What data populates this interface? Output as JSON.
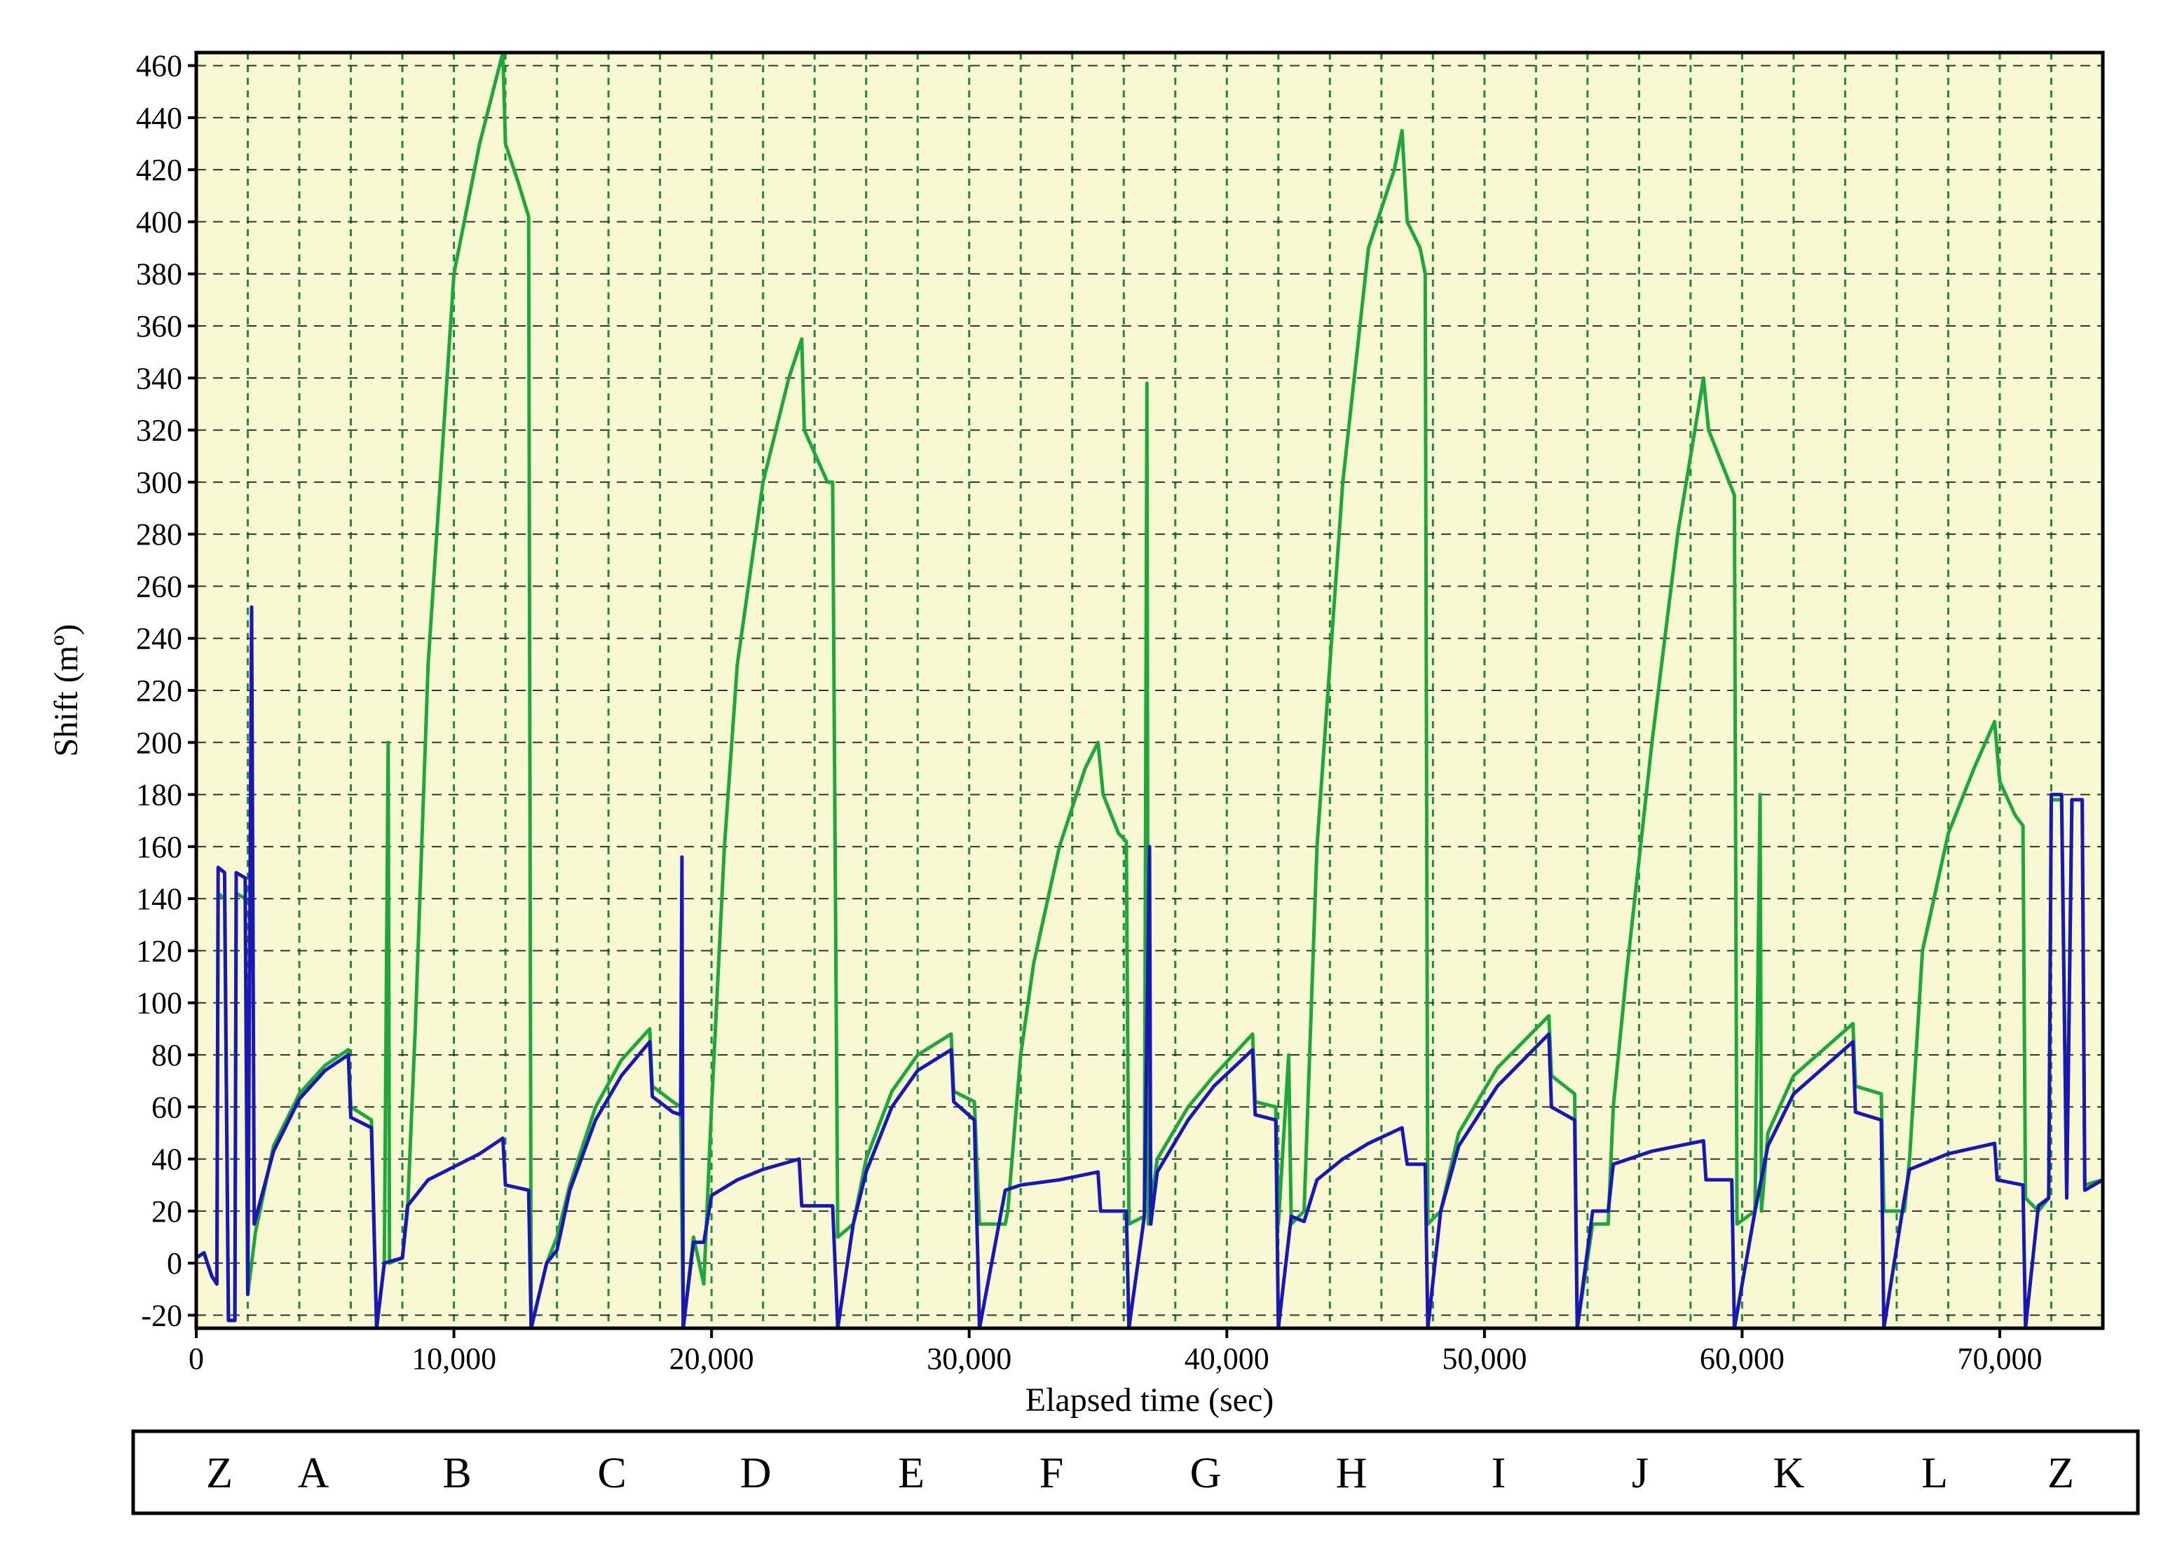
{
  "colors": {
    "plot_background": "#f8f8d2",
    "grid": "#1f8a3a",
    "series_green": "#1fa83a",
    "series_blue": "#1a17b8"
  },
  "chart_data": {
    "type": "line",
    "xlabel": "Elapsed time (sec)",
    "ylabel": "Shift (mº)",
    "xlim": [
      0,
      74000
    ],
    "ylim": [
      -25,
      465
    ],
    "x_ticks": [
      0,
      10000,
      20000,
      30000,
      40000,
      50000,
      60000,
      70000
    ],
    "x_tick_labels": [
      "0",
      "10,000",
      "20,000",
      "30,000",
      "40,000",
      "50,000",
      "60,000",
      "70,000"
    ],
    "y_ticks": [
      -20,
      0,
      20,
      40,
      60,
      80,
      100,
      120,
      140,
      160,
      180,
      200,
      220,
      240,
      260,
      280,
      300,
      320,
      340,
      360,
      380,
      400,
      420,
      440,
      460
    ],
    "y_tick_labels": [
      "-20",
      "0",
      "20",
      "40",
      "60",
      "80",
      "100",
      "120",
      "140",
      "160",
      "180",
      "200",
      "220",
      "240",
      "260",
      "280",
      "300",
      "320",
      "340",
      "360",
      "380",
      "400",
      "420",
      "440",
      "460"
    ],
    "grid": true,
    "vertical_grid_spacing": 2000,
    "legend": "none",
    "series": [
      {
        "color": "#1fa83a",
        "points": [
          [
            0,
            2
          ],
          [
            300,
            4
          ],
          [
            600,
            -5
          ],
          [
            800,
            -8
          ],
          [
            850,
            142
          ],
          [
            1100,
            140
          ],
          [
            1250,
            -22
          ],
          [
            1500,
            -22
          ],
          [
            1550,
            142
          ],
          [
            1900,
            140
          ],
          [
            2000,
            -12
          ],
          [
            2300,
            12
          ],
          [
            3000,
            45
          ],
          [
            4000,
            65
          ],
          [
            5000,
            76
          ],
          [
            5900,
            82
          ],
          [
            6000,
            60
          ],
          [
            6800,
            55
          ],
          [
            7000,
            -25
          ],
          [
            7300,
            0
          ],
          [
            7450,
            200
          ],
          [
            7500,
            0
          ],
          [
            8000,
            2
          ],
          [
            8200,
            20
          ],
          [
            8500,
            90
          ],
          [
            9000,
            230
          ],
          [
            10000,
            380
          ],
          [
            11000,
            430
          ],
          [
            11900,
            465
          ],
          [
            12000,
            430
          ],
          [
            12500,
            415
          ],
          [
            12900,
            402
          ],
          [
            13000,
            -25
          ],
          [
            13600,
            0
          ],
          [
            14000,
            10
          ],
          [
            14500,
            30
          ],
          [
            15500,
            60
          ],
          [
            16500,
            78
          ],
          [
            17600,
            90
          ],
          [
            17700,
            68
          ],
          [
            18500,
            62
          ],
          [
            18800,
            60
          ],
          [
            18900,
            -25
          ],
          [
            19300,
            10
          ],
          [
            19700,
            -8
          ],
          [
            20000,
            60
          ],
          [
            20500,
            160
          ],
          [
            21000,
            230
          ],
          [
            22000,
            300
          ],
          [
            23000,
            340
          ],
          [
            23500,
            355
          ],
          [
            23600,
            320
          ],
          [
            24500,
            300
          ],
          [
            24700,
            300
          ],
          [
            24900,
            10
          ],
          [
            25500,
            15
          ],
          [
            26000,
            40
          ],
          [
            27000,
            66
          ],
          [
            28000,
            80
          ],
          [
            29300,
            88
          ],
          [
            29400,
            66
          ],
          [
            30200,
            62
          ],
          [
            30400,
            15
          ],
          [
            31400,
            15
          ],
          [
            31500,
            20
          ],
          [
            32000,
            80
          ],
          [
            32500,
            115
          ],
          [
            33500,
            160
          ],
          [
            34500,
            190
          ],
          [
            35000,
            200
          ],
          [
            35200,
            180
          ],
          [
            35800,
            165
          ],
          [
            36100,
            162
          ],
          [
            36200,
            15
          ],
          [
            36800,
            18
          ],
          [
            36900,
            338
          ],
          [
            36950,
            15
          ],
          [
            37300,
            40
          ],
          [
            38500,
            60
          ],
          [
            39500,
            72
          ],
          [
            41000,
            88
          ],
          [
            41100,
            62
          ],
          [
            41900,
            60
          ],
          [
            42000,
            15
          ],
          [
            42400,
            80
          ],
          [
            42500,
            15
          ],
          [
            43000,
            20
          ],
          [
            43500,
            160
          ],
          [
            44500,
            300
          ],
          [
            45500,
            390
          ],
          [
            46500,
            420
          ],
          [
            46800,
            435
          ],
          [
            47000,
            400
          ],
          [
            47500,
            390
          ],
          [
            47700,
            380
          ],
          [
            47800,
            15
          ],
          [
            48300,
            20
          ],
          [
            49000,
            50
          ],
          [
            50500,
            75
          ],
          [
            52500,
            95
          ],
          [
            52600,
            72
          ],
          [
            53500,
            65
          ],
          [
            53600,
            -25
          ],
          [
            54200,
            15
          ],
          [
            54800,
            15
          ],
          [
            55000,
            60
          ],
          [
            55500,
            110
          ],
          [
            56500,
            200
          ],
          [
            57500,
            280
          ],
          [
            58500,
            340
          ],
          [
            58700,
            320
          ],
          [
            59500,
            300
          ],
          [
            59700,
            295
          ],
          [
            59800,
            15
          ],
          [
            60500,
            20
          ],
          [
            60700,
            180
          ],
          [
            60750,
            20
          ],
          [
            61000,
            50
          ],
          [
            62000,
            72
          ],
          [
            64300,
            92
          ],
          [
            64400,
            68
          ],
          [
            65400,
            65
          ],
          [
            65500,
            20
          ],
          [
            66300,
            20
          ],
          [
            66500,
            40
          ],
          [
            67000,
            120
          ],
          [
            68000,
            165
          ],
          [
            69000,
            190
          ],
          [
            69800,
            208
          ],
          [
            70000,
            185
          ],
          [
            70600,
            172
          ],
          [
            70900,
            168
          ],
          [
            71000,
            25
          ],
          [
            71500,
            20
          ],
          [
            71900,
            25
          ],
          [
            72000,
            178
          ],
          [
            72400,
            178
          ],
          [
            72600,
            30
          ],
          [
            72800,
            178
          ],
          [
            73200,
            178
          ],
          [
            73300,
            30
          ],
          [
            74000,
            32
          ]
        ]
      },
      {
        "color": "#1a17b8",
        "points": [
          [
            0,
            2
          ],
          [
            300,
            4
          ],
          [
            600,
            -5
          ],
          [
            800,
            -8
          ],
          [
            850,
            152
          ],
          [
            1100,
            150
          ],
          [
            1250,
            -22
          ],
          [
            1500,
            -22
          ],
          [
            1550,
            150
          ],
          [
            1900,
            148
          ],
          [
            2000,
            -12
          ],
          [
            2150,
            252
          ],
          [
            2250,
            15
          ],
          [
            3000,
            43
          ],
          [
            4000,
            63
          ],
          [
            5000,
            74
          ],
          [
            5900,
            80
          ],
          [
            6000,
            56
          ],
          [
            6800,
            52
          ],
          [
            7000,
            -25
          ],
          [
            7300,
            0
          ],
          [
            8000,
            2
          ],
          [
            8200,
            22
          ],
          [
            9000,
            32
          ],
          [
            10000,
            37
          ],
          [
            11000,
            42
          ],
          [
            11900,
            48
          ],
          [
            12000,
            30
          ],
          [
            12900,
            28
          ],
          [
            13000,
            -25
          ],
          [
            13600,
            0
          ],
          [
            14000,
            5
          ],
          [
            14500,
            28
          ],
          [
            15500,
            55
          ],
          [
            16500,
            72
          ],
          [
            17600,
            85
          ],
          [
            17700,
            64
          ],
          [
            18500,
            58
          ],
          [
            18800,
            57
          ],
          [
            18850,
            156
          ],
          [
            18900,
            -25
          ],
          [
            19300,
            8
          ],
          [
            19700,
            8
          ],
          [
            20000,
            26
          ],
          [
            21000,
            32
          ],
          [
            22000,
            36
          ],
          [
            23400,
            40
          ],
          [
            23500,
            22
          ],
          [
            24700,
            22
          ],
          [
            24900,
            -25
          ],
          [
            25500,
            15
          ],
          [
            26000,
            35
          ],
          [
            27000,
            60
          ],
          [
            28000,
            74
          ],
          [
            29300,
            82
          ],
          [
            29400,
            62
          ],
          [
            30200,
            55
          ],
          [
            30400,
            -25
          ],
          [
            31400,
            28
          ],
          [
            32000,
            30
          ],
          [
            33500,
            32
          ],
          [
            35000,
            35
          ],
          [
            35100,
            20
          ],
          [
            36100,
            20
          ],
          [
            36200,
            -25
          ],
          [
            36800,
            18
          ],
          [
            37000,
            160
          ],
          [
            37050,
            15
          ],
          [
            37300,
            35
          ],
          [
            38500,
            55
          ],
          [
            39500,
            68
          ],
          [
            41000,
            82
          ],
          [
            41100,
            57
          ],
          [
            41900,
            55
          ],
          [
            42000,
            -25
          ],
          [
            42500,
            18
          ],
          [
            43000,
            16
          ],
          [
            43500,
            32
          ],
          [
            44500,
            40
          ],
          [
            45500,
            46
          ],
          [
            46800,
            52
          ],
          [
            47000,
            38
          ],
          [
            47700,
            38
          ],
          [
            47800,
            -25
          ],
          [
            48300,
            20
          ],
          [
            49000,
            45
          ],
          [
            50500,
            68
          ],
          [
            52500,
            88
          ],
          [
            52600,
            60
          ],
          [
            53500,
            55
          ],
          [
            53600,
            -25
          ],
          [
            54200,
            20
          ],
          [
            54800,
            20
          ],
          [
            55000,
            38
          ],
          [
            56500,
            43
          ],
          [
            58500,
            47
          ],
          [
            58600,
            32
          ],
          [
            59600,
            32
          ],
          [
            59700,
            -25
          ],
          [
            60500,
            20
          ],
          [
            61000,
            45
          ],
          [
            62000,
            65
          ],
          [
            64300,
            85
          ],
          [
            64400,
            58
          ],
          [
            65400,
            55
          ],
          [
            65500,
            -25
          ],
          [
            66300,
            25
          ],
          [
            66500,
            36
          ],
          [
            68000,
            42
          ],
          [
            69800,
            46
          ],
          [
            69900,
            32
          ],
          [
            70900,
            30
          ],
          [
            71000,
            -25
          ],
          [
            71500,
            22
          ],
          [
            71900,
            25
          ],
          [
            72000,
            180
          ],
          [
            72400,
            180
          ],
          [
            72600,
            25
          ],
          [
            72800,
            178
          ],
          [
            73200,
            178
          ],
          [
            73300,
            28
          ],
          [
            74000,
            32
          ]
        ]
      }
    ]
  },
  "segments": {
    "labels": [
      "Z",
      "A",
      "B",
      "C",
      "D",
      "E",
      "F",
      "G",
      "H",
      "I",
      "J",
      "K",
      "L",
      "Z"
    ]
  }
}
